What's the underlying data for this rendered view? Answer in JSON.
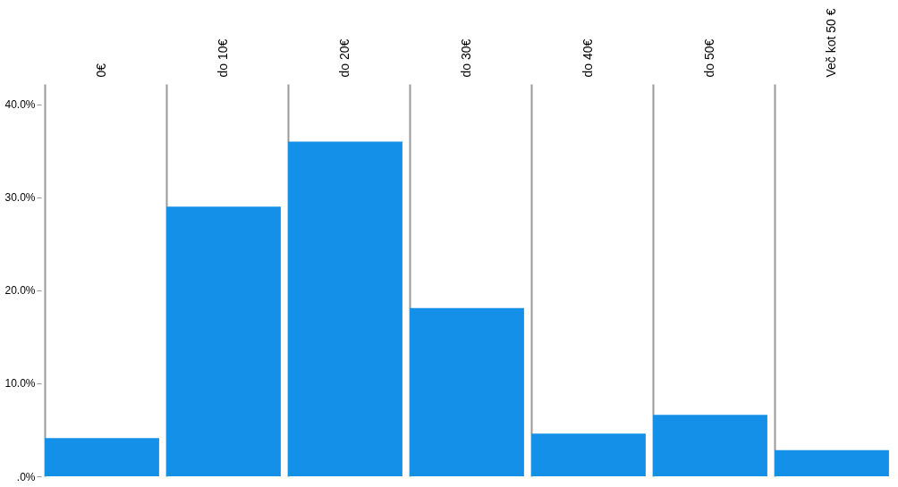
{
  "chart_data": {
    "type": "bar",
    "categories": [
      "0€",
      "do 10€",
      "do 20€",
      "do 30€",
      "do 40€",
      "do 50€",
      "Več kot 50 €"
    ],
    "values": [
      4.1,
      29.0,
      36.0,
      18.1,
      4.6,
      6.6,
      2.8
    ],
    "color": "#1490e8",
    "ylim": [
      0,
      42.2
    ],
    "yticks": [
      {
        "value": 0,
        "label": ".0%"
      },
      {
        "value": 10,
        "label": "10.0%"
      },
      {
        "value": 20,
        "label": "20.0%"
      },
      {
        "value": 30,
        "label": "30.0%"
      },
      {
        "value": 40,
        "label": "40.0%"
      }
    ],
    "grid": "x"
  }
}
